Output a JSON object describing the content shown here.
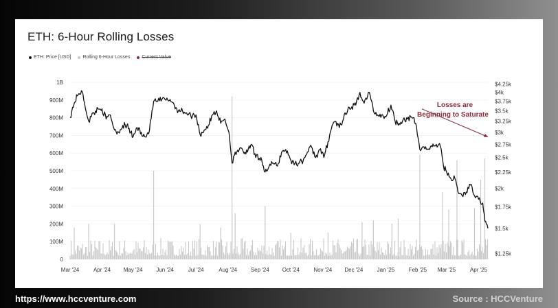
{
  "page": {
    "source_url": "https://www.hccventure.com",
    "source_label": "Source : HCCVenture"
  },
  "chart_data": {
    "type": "line",
    "title": "ETH: 6-Hour Rolling Losses",
    "legend": {
      "placement": "top-left",
      "entries": [
        {
          "label": "ETH: Price [USD]",
          "color": "#111111"
        },
        {
          "label": "Rolling 6-Hour Losses",
          "color": "#c8c8c8"
        },
        {
          "label": "Current Value",
          "color": "#8b2b3a",
          "struck": true
        }
      ]
    },
    "x_ticks": [
      "Mar '24",
      "Apr '24",
      "May '24",
      "Jun '24",
      "Jul '24",
      "Aug '24",
      "Sep '24",
      "Oct '24",
      "Nov '24",
      "Dec '24",
      "Jan '25",
      "Feb '25",
      "Mar '25",
      "Apr '25"
    ],
    "y_left": {
      "ticks": [
        "0",
        "100M",
        "200M",
        "300M",
        "400M",
        "500M",
        "600M",
        "700M",
        "800M",
        "900M",
        "1B"
      ],
      "range": [
        0,
        1000000000
      ]
    },
    "y_right": {
      "ticks": [
        "$1.25k",
        "$1.5k",
        "$1.75k",
        "$2k",
        "$2.25k",
        "$2.5k",
        "$2.75k",
        "$3k",
        "$3.25k",
        "$3.5k",
        "$3.75k",
        "$4k",
        "$4.25k"
      ],
      "range": [
        1200,
        4300
      ],
      "scale": "log"
    },
    "grid": "horizontal",
    "price_series": {
      "name": "ETH: Price [USD]",
      "color": "#111111",
      "points": [
        [
          "2024-03-01",
          3340
        ],
        [
          "2024-03-05",
          3700
        ],
        [
          "2024-03-08",
          3900
        ],
        [
          "2024-03-12",
          4050
        ],
        [
          "2024-03-15",
          3700
        ],
        [
          "2024-03-19",
          3250
        ],
        [
          "2024-03-24",
          3450
        ],
        [
          "2024-03-28",
          3550
        ],
        [
          "2024-04-01",
          3550
        ],
        [
          "2024-04-05",
          3300
        ],
        [
          "2024-04-09",
          3400
        ],
        [
          "2024-04-13",
          3050
        ],
        [
          "2024-04-17",
          3000
        ],
        [
          "2024-04-21",
          3150
        ],
        [
          "2024-04-25",
          3150
        ],
        [
          "2024-05-01",
          2900
        ],
        [
          "2024-05-05",
          3100
        ],
        [
          "2024-05-09",
          3000
        ],
        [
          "2024-05-13",
          2900
        ],
        [
          "2024-05-17",
          3050
        ],
        [
          "2024-05-21",
          3750
        ],
        [
          "2024-05-25",
          3750
        ],
        [
          "2024-05-29",
          3800
        ],
        [
          "2024-06-02",
          3780
        ],
        [
          "2024-06-06",
          3800
        ],
        [
          "2024-06-10",
          3650
        ],
        [
          "2024-06-14",
          3500
        ],
        [
          "2024-06-18",
          3500
        ],
        [
          "2024-06-22",
          3450
        ],
        [
          "2024-06-26",
          3380
        ],
        [
          "2024-07-01",
          3400
        ],
        [
          "2024-07-05",
          2950
        ],
        [
          "2024-07-09",
          3050
        ],
        [
          "2024-07-13",
          3150
        ],
        [
          "2024-07-17",
          3400
        ],
        [
          "2024-07-21",
          3500
        ],
        [
          "2024-07-25",
          3200
        ],
        [
          "2024-07-29",
          3300
        ],
        [
          "2024-08-02",
          3000
        ],
        [
          "2024-08-05",
          2400
        ],
        [
          "2024-08-08",
          2600
        ],
        [
          "2024-08-12",
          2650
        ],
        [
          "2024-08-16",
          2600
        ],
        [
          "2024-08-20",
          2600
        ],
        [
          "2024-08-24",
          2750
        ],
        [
          "2024-08-28",
          2500
        ],
        [
          "2024-09-02",
          2500
        ],
        [
          "2024-09-06",
          2250
        ],
        [
          "2024-09-10",
          2350
        ],
        [
          "2024-09-14",
          2400
        ],
        [
          "2024-09-18",
          2350
        ],
        [
          "2024-09-22",
          2600
        ],
        [
          "2024-09-26",
          2650
        ],
        [
          "2024-10-01",
          2450
        ],
        [
          "2024-10-05",
          2400
        ],
        [
          "2024-10-09",
          2400
        ],
        [
          "2024-10-13",
          2450
        ],
        [
          "2024-10-17",
          2600
        ],
        [
          "2024-10-21",
          2700
        ],
        [
          "2024-10-25",
          2500
        ],
        [
          "2024-10-29",
          2650
        ],
        [
          "2024-11-02",
          2500
        ],
        [
          "2024-11-06",
          2800
        ],
        [
          "2024-11-10",
          3150
        ],
        [
          "2024-11-13",
          3250
        ],
        [
          "2024-11-17",
          3100
        ],
        [
          "2024-11-21",
          3300
        ],
        [
          "2024-11-25",
          3500
        ],
        [
          "2024-11-29",
          3600
        ],
        [
          "2024-12-03",
          3650
        ],
        [
          "2024-12-07",
          4000
        ],
        [
          "2024-12-11",
          3700
        ],
        [
          "2024-12-16",
          4000
        ],
        [
          "2024-12-20",
          3500
        ],
        [
          "2024-12-24",
          3400
        ],
        [
          "2024-12-28",
          3400
        ],
        [
          "2025-01-01",
          3350
        ],
        [
          "2025-01-06",
          3650
        ],
        [
          "2025-01-10",
          3250
        ],
        [
          "2025-01-14",
          3200
        ],
        [
          "2025-01-18",
          3300
        ],
        [
          "2025-01-22",
          3300
        ],
        [
          "2025-01-26",
          3350
        ],
        [
          "2025-01-30",
          3200
        ],
        [
          "2025-02-03",
          2650
        ],
        [
          "2025-02-07",
          2700
        ],
        [
          "2025-02-11",
          2650
        ],
        [
          "2025-02-15",
          2700
        ],
        [
          "2025-02-19",
          2750
        ],
        [
          "2025-02-23",
          2700
        ],
        [
          "2025-02-26",
          2350
        ],
        [
          "2025-03-01",
          2250
        ],
        [
          "2025-03-05",
          2150
        ],
        [
          "2025-03-09",
          2150
        ],
        [
          "2025-03-12",
          1950
        ],
        [
          "2025-03-16",
          1900
        ],
        [
          "2025-03-20",
          1950
        ],
        [
          "2025-03-24",
          2050
        ],
        [
          "2025-03-28",
          1900
        ],
        [
          "2025-04-01",
          1850
        ],
        [
          "2025-04-05",
          1800
        ],
        [
          "2025-04-07",
          1580
        ],
        [
          "2025-04-10",
          1500
        ]
      ]
    },
    "losses_series": {
      "name": "Rolling 6-Hour Losses",
      "color": "#c8c8c8",
      "baseline_range": [
        20000000,
        120000000
      ],
      "spikes": [
        [
          "2024-03-05",
          180000000
        ],
        [
          "2024-03-19",
          200000000
        ],
        [
          "2024-04-13",
          200000000
        ],
        [
          "2024-05-21",
          500000000
        ],
        [
          "2024-07-05",
          200000000
        ],
        [
          "2024-07-25",
          180000000
        ],
        [
          "2024-08-05",
          920000000
        ],
        [
          "2024-08-08",
          260000000
        ],
        [
          "2024-09-06",
          300000000
        ],
        [
          "2024-10-01",
          150000000
        ],
        [
          "2024-11-06",
          150000000
        ],
        [
          "2024-12-09",
          210000000
        ],
        [
          "2024-12-20",
          220000000
        ],
        [
          "2025-01-07",
          200000000
        ],
        [
          "2025-01-13",
          230000000
        ],
        [
          "2025-02-03",
          590000000
        ],
        [
          "2025-02-25",
          380000000
        ],
        [
          "2025-03-03",
          280000000
        ],
        [
          "2025-03-11",
          560000000
        ],
        [
          "2025-03-28",
          290000000
        ],
        [
          "2025-04-03",
          450000000
        ],
        [
          "2025-04-07",
          570000000
        ]
      ]
    },
    "annotation": {
      "text_line1": "Losses are",
      "text_line2": "Beginning to Saturate",
      "color": "#8b2b3a",
      "arrow_from_date": "2025-02-05",
      "arrow_from_value": 3550,
      "arrow_to_date": "2025-04-10",
      "arrow_to_value": 2900
    }
  }
}
